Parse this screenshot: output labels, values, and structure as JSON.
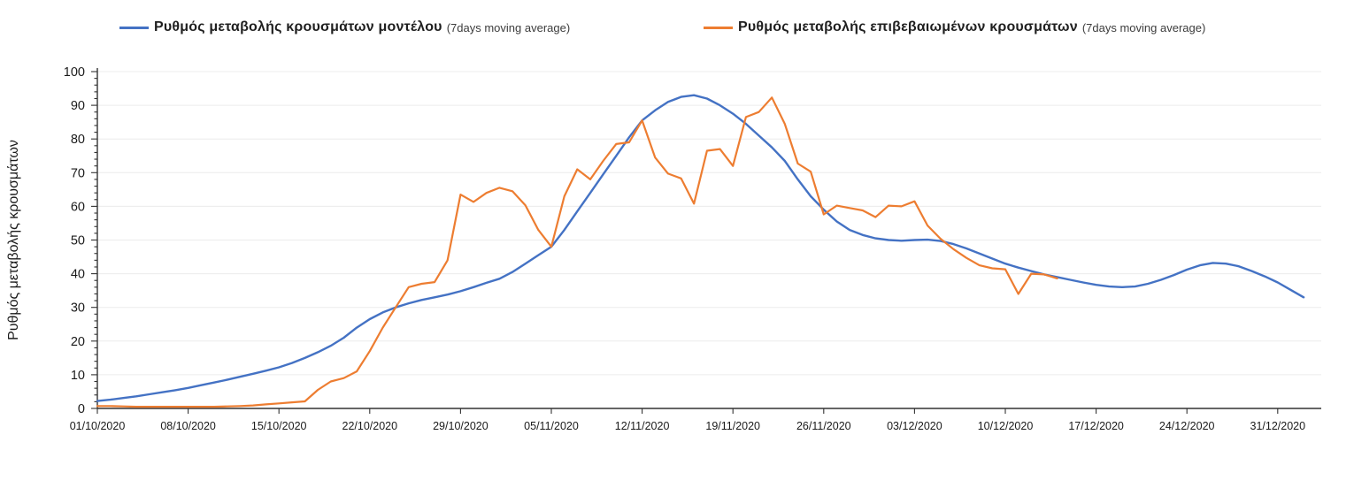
{
  "legend": {
    "items": [
      {
        "label": "Ρυθμός μεταβολής κρουσμάτων μοντέλου",
        "sublabel": "(7days moving average)",
        "color": "#4472C4"
      },
      {
        "label": "Ρυθμός μεταβολής επιβεβαιωμένων κρουσμάτων",
        "sublabel": "(7days moving average)",
        "color": "#ED7D31"
      }
    ]
  },
  "chart_data": {
    "type": "line",
    "title": "",
    "ylabel": "Ρυθμός μεταβολής κρουσμάτων",
    "xlabel": "",
    "ylim": [
      0,
      100
    ],
    "y_tick_step": 10,
    "y_minor_tick_step": 2,
    "grid": "horizontal",
    "legend_position": "top",
    "x_start_date": "01/10/2020",
    "x_interval_days": 1,
    "x_tick_every_days": 7,
    "x_tick_labels": [
      "01/10/2020",
      "08/10/2020",
      "15/10/2020",
      "22/10/2020",
      "29/10/2020",
      "05/11/2020",
      "12/11/2020",
      "19/11/2020",
      "26/11/2020",
      "03/12/2020",
      "10/12/2020",
      "17/12/2020",
      "24/12/2020",
      "31/12/2020"
    ],
    "series": [
      {
        "name": "Ρυθμός μεταβολής κρουσμάτων μοντέλου (7days moving average)",
        "color": "#4472C4",
        "stroke_width": 2.4,
        "values": [
          2.2,
          2.6,
          3.1,
          3.6,
          4.2,
          4.8,
          5.4,
          6.1,
          6.9,
          7.7,
          8.5,
          9.4,
          10.3,
          11.2,
          12.2,
          13.5,
          15,
          16.7,
          18.6,
          21,
          24,
          26.5,
          28.5,
          30,
          31.2,
          32.2,
          33,
          33.8,
          34.8,
          36,
          37.3,
          38.5,
          40.5,
          43,
          45.5,
          48,
          53,
          58.5,
          64,
          69.5,
          75,
          80.5,
          85.5,
          88.5,
          91,
          92.5,
          93,
          92,
          90,
          87.5,
          84.5,
          81,
          77.5,
          73.5,
          68,
          63,
          59,
          55.5,
          53,
          51.5,
          50.5,
          50,
          49.8,
          50,
          50.1,
          49.7,
          48.8,
          47.5,
          46,
          44.5,
          43,
          41.8,
          40.8,
          39.8,
          39,
          38.2,
          37.4,
          36.7,
          36.2,
          36,
          36.2,
          37,
          38.2,
          39.6,
          41.2,
          42.5,
          43.2,
          43,
          42.2,
          40.8,
          39.2,
          37.4,
          35.2,
          33
        ]
      },
      {
        "name": "Ρυθμός μεταβολής επιβεβαιωμένων κρουσμάτων (7days moving average)",
        "color": "#ED7D31",
        "stroke_width": 2.2,
        "values": [
          0.7,
          0.7,
          0.6,
          0.5,
          0.5,
          0.5,
          0.5,
          0.5,
          0.5,
          0.5,
          0.6,
          0.7,
          0.9,
          1.2,
          1.5,
          1.8,
          2.1,
          5.5,
          8,
          9,
          11,
          17,
          24,
          30,
          36,
          37,
          37.5,
          44,
          63.5,
          61.3,
          64,
          65.5,
          64.5,
          60.3,
          53,
          48,
          63,
          71,
          68,
          73.5,
          78.5,
          79,
          85.5,
          74.5,
          69.7,
          68.3,
          60.8,
          76.5,
          77,
          72,
          86.5,
          88,
          92.3,
          84.5,
          72.7,
          70.3,
          57.6,
          60.2,
          59.5,
          58.8,
          56.8,
          60.2,
          60,
          61.5,
          54.3,
          50.4,
          47.3,
          44.7,
          42.5,
          41.6,
          41.3,
          34,
          40,
          39.8,
          38.6
        ]
      }
    ],
    "colors": {
      "axis": "#333333",
      "gridline": "#ececec",
      "tick_label": "#1a1a1a"
    }
  }
}
